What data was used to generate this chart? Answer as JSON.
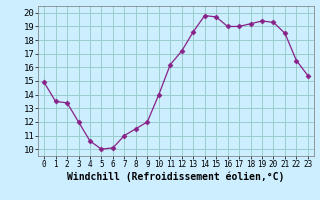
{
  "x": [
    0,
    1,
    2,
    3,
    4,
    5,
    6,
    7,
    8,
    9,
    10,
    11,
    12,
    13,
    14,
    15,
    16,
    17,
    18,
    19,
    20,
    21,
    22,
    23
  ],
  "y": [
    14.9,
    13.5,
    13.4,
    12.0,
    10.6,
    10.0,
    10.1,
    11.0,
    11.5,
    12.0,
    14.0,
    16.2,
    17.2,
    18.6,
    19.8,
    19.7,
    19.0,
    19.0,
    19.2,
    19.4,
    19.3,
    18.5,
    16.5,
    15.4
  ],
  "line_color": "#882288",
  "marker": "D",
  "marker_size": 2.5,
  "bg_color": "#cceeff",
  "grid_color": "#99cccc",
  "xlabel": "Windchill (Refroidissement éolien,°C)",
  "xlabel_fontsize": 7,
  "ylabel_ticks": [
    10,
    11,
    12,
    13,
    14,
    15,
    16,
    17,
    18,
    19,
    20
  ],
  "ylim": [
    9.5,
    20.5
  ],
  "xlim": [
    -0.5,
    23.5
  ],
  "xtick_fontsize": 5.5,
  "ytick_fontsize": 6.5
}
